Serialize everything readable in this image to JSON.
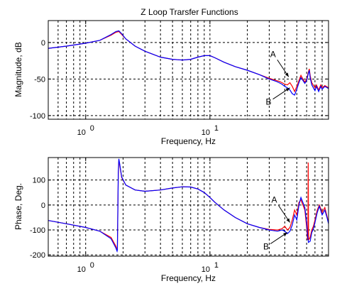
{
  "figure": {
    "title": "Z Loop Trarsfer Functions"
  },
  "colors": {
    "series_a": "#ff0000",
    "series_b": "#0000ff",
    "grid": "#000000",
    "background": "#ffffff"
  },
  "chart_data": [
    {
      "type": "line",
      "title": "Z Loop Trarsfer Functions",
      "xlabel": "Frequency, Hz",
      "ylabel": "Magnitude, dB",
      "xscale": "log",
      "xlim": [
        0.5,
        90
      ],
      "ylim": [
        -105,
        30
      ],
      "grid": true,
      "xticks": [
        1,
        10
      ],
      "xtick_labels": [
        {
          "base": "10",
          "exp": "0"
        },
        {
          "base": "10",
          "exp": "1"
        }
      ],
      "yticks": [
        -100,
        -50,
        0
      ],
      "ytick_labels": [
        "-100",
        "-50",
        "0"
      ],
      "annotations": [
        {
          "text": "A",
          "series": "A",
          "at": [
            43,
            -47
          ]
        },
        {
          "text": "B",
          "series": "B",
          "at": [
            44,
            -62
          ]
        }
      ],
      "series": [
        {
          "name": "A",
          "color": "#ff0000",
          "points": [
            [
              0.5,
              -8
            ],
            [
              0.7,
              -5
            ],
            [
              1.0,
              -1
            ],
            [
              1.3,
              3
            ],
            [
              1.6,
              10
            ],
            [
              1.75,
              14
            ],
            [
              1.85,
              15
            ],
            [
              1.95,
              11
            ],
            [
              2.1,
              5
            ],
            [
              2.5,
              -5
            ],
            [
              3,
              -12
            ],
            [
              4,
              -20
            ],
            [
              5,
              -23
            ],
            [
              6,
              -24
            ],
            [
              7,
              -23
            ],
            [
              8,
              -20
            ],
            [
              9,
              -18
            ],
            [
              10,
              -18
            ],
            [
              11,
              -21
            ],
            [
              13,
              -27
            ],
            [
              16,
              -33
            ],
            [
              20,
              -38
            ],
            [
              25,
              -44
            ],
            [
              30,
              -49
            ],
            [
              34,
              -52
            ],
            [
              36,
              -53
            ],
            [
              38,
              -55
            ],
            [
              40,
              -57
            ],
            [
              42,
              -58
            ],
            [
              44,
              -55
            ],
            [
              46,
              -60
            ],
            [
              48,
              -67
            ],
            [
              50,
              -60
            ],
            [
              52,
              -52
            ],
            [
              54,
              -45
            ],
            [
              56,
              -50
            ],
            [
              58,
              -54
            ],
            [
              60,
              -50
            ],
            [
              62,
              -40
            ],
            [
              63,
              -36
            ],
            [
              64,
              -45
            ],
            [
              66,
              -55
            ],
            [
              70,
              -62
            ],
            [
              72,
              -58
            ],
            [
              75,
              -65
            ],
            [
              78,
              -58
            ],
            [
              80,
              -62
            ],
            [
              84,
              -59
            ],
            [
              88,
              -61
            ],
            [
              90,
              -62
            ]
          ]
        },
        {
          "name": "B",
          "color": "#0000ff",
          "points": [
            [
              0.5,
              -8
            ],
            [
              0.7,
              -5
            ],
            [
              1.0,
              -1
            ],
            [
              1.3,
              3
            ],
            [
              1.6,
              11
            ],
            [
              1.75,
              15
            ],
            [
              1.85,
              16
            ],
            [
              1.95,
              12
            ],
            [
              2.1,
              5
            ],
            [
              2.5,
              -5
            ],
            [
              3,
              -12
            ],
            [
              4,
              -20
            ],
            [
              5,
              -23
            ],
            [
              6,
              -24
            ],
            [
              7,
              -23
            ],
            [
              8,
              -20
            ],
            [
              9,
              -18
            ],
            [
              10,
              -18
            ],
            [
              11,
              -21
            ],
            [
              13,
              -27
            ],
            [
              16,
              -33
            ],
            [
              20,
              -38
            ],
            [
              25,
              -44
            ],
            [
              30,
              -50
            ],
            [
              34,
              -53
            ],
            [
              36,
              -55
            ],
            [
              38,
              -57
            ],
            [
              40,
              -60
            ],
            [
              42,
              -62
            ],
            [
              44,
              -65
            ],
            [
              46,
              -70
            ],
            [
              48,
              -72
            ],
            [
              50,
              -64
            ],
            [
              52,
              -55
            ],
            [
              54,
              -48
            ],
            [
              56,
              -52
            ],
            [
              58,
              -56
            ],
            [
              60,
              -52
            ],
            [
              62,
              -42
            ],
            [
              63,
              -38
            ],
            [
              64,
              -48
            ],
            [
              66,
              -58
            ],
            [
              70,
              -66
            ],
            [
              72,
              -60
            ],
            [
              75,
              -67
            ],
            [
              78,
              -60
            ],
            [
              80,
              -64
            ],
            [
              84,
              -60
            ],
            [
              88,
              -62
            ],
            [
              90,
              -63
            ]
          ]
        }
      ]
    },
    {
      "type": "line",
      "title": "",
      "xlabel": "Frequency, Hz",
      "ylabel": "Phase, Deg.",
      "xscale": "log",
      "xlim": [
        0.5,
        90
      ],
      "ylim": [
        -205,
        190
      ],
      "grid": true,
      "xticks": [
        1,
        10
      ],
      "xtick_labels": [
        {
          "base": "10",
          "exp": "0"
        },
        {
          "base": "10",
          "exp": "1"
        }
      ],
      "yticks": [
        -200,
        -100,
        0,
        100
      ],
      "ytick_labels": [
        "-200",
        "-100",
        "0",
        "100"
      ],
      "annotations": [
        {
          "text": "A",
          "series": "A",
          "at": [
            44,
            -70
          ]
        },
        {
          "text": "B",
          "series": "B",
          "at": [
            42,
            -110
          ]
        }
      ],
      "series": [
        {
          "name": "A",
          "color": "#ff0000",
          "points": [
            [
              0.5,
              -62
            ],
            [
              0.7,
              -75
            ],
            [
              1.0,
              -90
            ],
            [
              1.3,
              -105
            ],
            [
              1.6,
              -130
            ],
            [
              1.75,
              -165
            ],
            [
              1.79,
              -180
            ],
            [
              1.8,
              -175
            ],
            [
              1.81,
              -60
            ],
            [
              1.83,
              120
            ],
            [
              1.85,
              180
            ],
            [
              1.88,
              160
            ],
            [
              1.95,
              110
            ],
            [
              2.1,
              80
            ],
            [
              2.5,
              60
            ],
            [
              3,
              55
            ],
            [
              4,
              60
            ],
            [
              5,
              68
            ],
            [
              6,
              73
            ],
            [
              7,
              72
            ],
            [
              8,
              64
            ],
            [
              9,
              50
            ],
            [
              10,
              30
            ],
            [
              11,
              10
            ],
            [
              13,
              -20
            ],
            [
              16,
              -50
            ],
            [
              20,
              -75
            ],
            [
              25,
              -90
            ],
            [
              30,
              -98
            ],
            [
              35,
              -100
            ],
            [
              38,
              -95
            ],
            [
              40,
              -85
            ],
            [
              42,
              -100
            ],
            [
              44,
              -90
            ],
            [
              46,
              -60
            ],
            [
              48,
              -20
            ],
            [
              50,
              -40
            ],
            [
              52,
              10
            ],
            [
              54,
              20
            ],
            [
              56,
              0
            ],
            [
              58,
              -20
            ],
            [
              60,
              -90
            ],
            [
              61,
              -140
            ],
            [
              61.5,
              -100
            ],
            [
              61.8,
              170
            ],
            [
              62.2,
              -140
            ],
            [
              64,
              -130
            ],
            [
              66,
              -100
            ],
            [
              68,
              -85
            ],
            [
              70,
              -60
            ],
            [
              73,
              -20
            ],
            [
              76,
              0
            ],
            [
              80,
              -30
            ],
            [
              84,
              -10
            ],
            [
              88,
              -50
            ],
            [
              90,
              -70
            ]
          ]
        },
        {
          "name": "B",
          "color": "#0000ff",
          "points": [
            [
              0.5,
              -62
            ],
            [
              0.7,
              -75
            ],
            [
              1.0,
              -90
            ],
            [
              1.3,
              -105
            ],
            [
              1.6,
              -135
            ],
            [
              1.75,
              -172
            ],
            [
              1.79,
              -185
            ],
            [
              1.8,
              -180
            ],
            [
              1.81,
              -70
            ],
            [
              1.83,
              130
            ],
            [
              1.85,
              185
            ],
            [
              1.88,
              165
            ],
            [
              1.95,
              112
            ],
            [
              2.1,
              80
            ],
            [
              2.5,
              60
            ],
            [
              3,
              55
            ],
            [
              4,
              60
            ],
            [
              5,
              68
            ],
            [
              6,
              73
            ],
            [
              7,
              72
            ],
            [
              8,
              64
            ],
            [
              9,
              50
            ],
            [
              10,
              30
            ],
            [
              11,
              10
            ],
            [
              13,
              -20
            ],
            [
              16,
              -50
            ],
            [
              20,
              -75
            ],
            [
              25,
              -90
            ],
            [
              30,
              -100
            ],
            [
              35,
              -105
            ],
            [
              38,
              -100
            ],
            [
              40,
              -105
            ],
            [
              42,
              -115
            ],
            [
              44,
              -105
            ],
            [
              46,
              -80
            ],
            [
              48,
              -40
            ],
            [
              50,
              -60
            ],
            [
              52,
              0
            ],
            [
              54,
              30
            ],
            [
              56,
              10
            ],
            [
              58,
              -10
            ],
            [
              60,
              -70
            ],
            [
              61,
              -120
            ],
            [
              62,
              -150
            ],
            [
              64,
              -145
            ],
            [
              66,
              -110
            ],
            [
              68,
              -95
            ],
            [
              70,
              -70
            ],
            [
              73,
              -30
            ],
            [
              76,
              -5
            ],
            [
              80,
              -40
            ],
            [
              84,
              -20
            ],
            [
              88,
              -55
            ],
            [
              90,
              -75
            ]
          ]
        }
      ]
    }
  ]
}
